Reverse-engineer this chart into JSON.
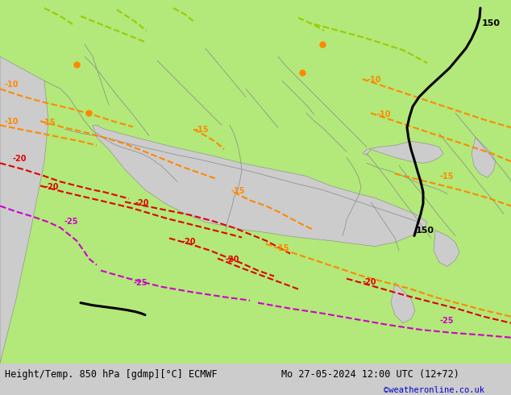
{
  "title_left": "Height/Temp. 850 hPa [gdmp][°C] ECMWF",
  "title_right": "Mo 27-05-2024 12:00 UTC (12+72)",
  "credit": "©weatheronline.co.uk",
  "background_land": "#b3e87a",
  "background_sea": "#d3d3d3",
  "border_color": "#888888",
  "text_color": "#000000",
  "fig_width": 6.34,
  "fig_height": 4.9,
  "dpi": 100,
  "bottom_bar_color": "#e8e8e8",
  "bottom_text_color": "#000000",
  "credit_color": "#0000cc"
}
